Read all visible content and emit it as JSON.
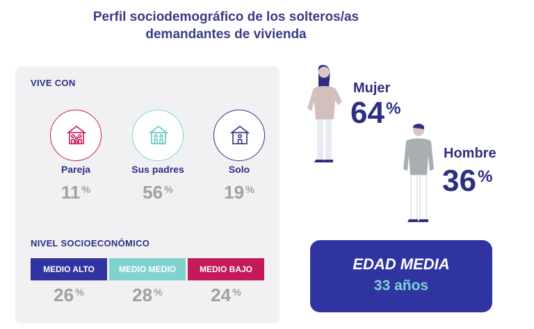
{
  "title_line1": "Perfil sociodemográfico de los solteros/as",
  "title_line2": "demandantes de vivienda",
  "vive_con": {
    "label": "VIVE CON",
    "options": [
      {
        "name": "Pareja",
        "value": "11",
        "unit": "%",
        "icon": "family-house-icon",
        "color": "#c4195a"
      },
      {
        "name": "Sus padres",
        "value": "56",
        "unit": "%",
        "icon": "parents-house-icon",
        "color": "#7fd3cf"
      },
      {
        "name": "Solo",
        "value": "19",
        "unit": "%",
        "icon": "single-person-house-icon",
        "color": "#2d2e84"
      }
    ]
  },
  "nivel": {
    "label": "NIVEL SOCIOECONÓMICO",
    "levels": [
      {
        "name": "MEDIO ALTO",
        "value": "26",
        "unit": "%",
        "color": "#2f34a0"
      },
      {
        "name": "MEDIO MEDIO",
        "value": "28",
        "unit": "%",
        "color": "#7fd3cf"
      },
      {
        "name": "MEDIO BAJO",
        "value": "24",
        "unit": "%",
        "color": "#c4195a"
      }
    ]
  },
  "gender": {
    "woman": {
      "label": "Mujer",
      "value": "64",
      "unit": "%"
    },
    "man": {
      "label": "Hombre",
      "value": "36",
      "unit": "%"
    }
  },
  "edad": {
    "title": "EDAD MEDIA",
    "value": "33 años"
  }
}
